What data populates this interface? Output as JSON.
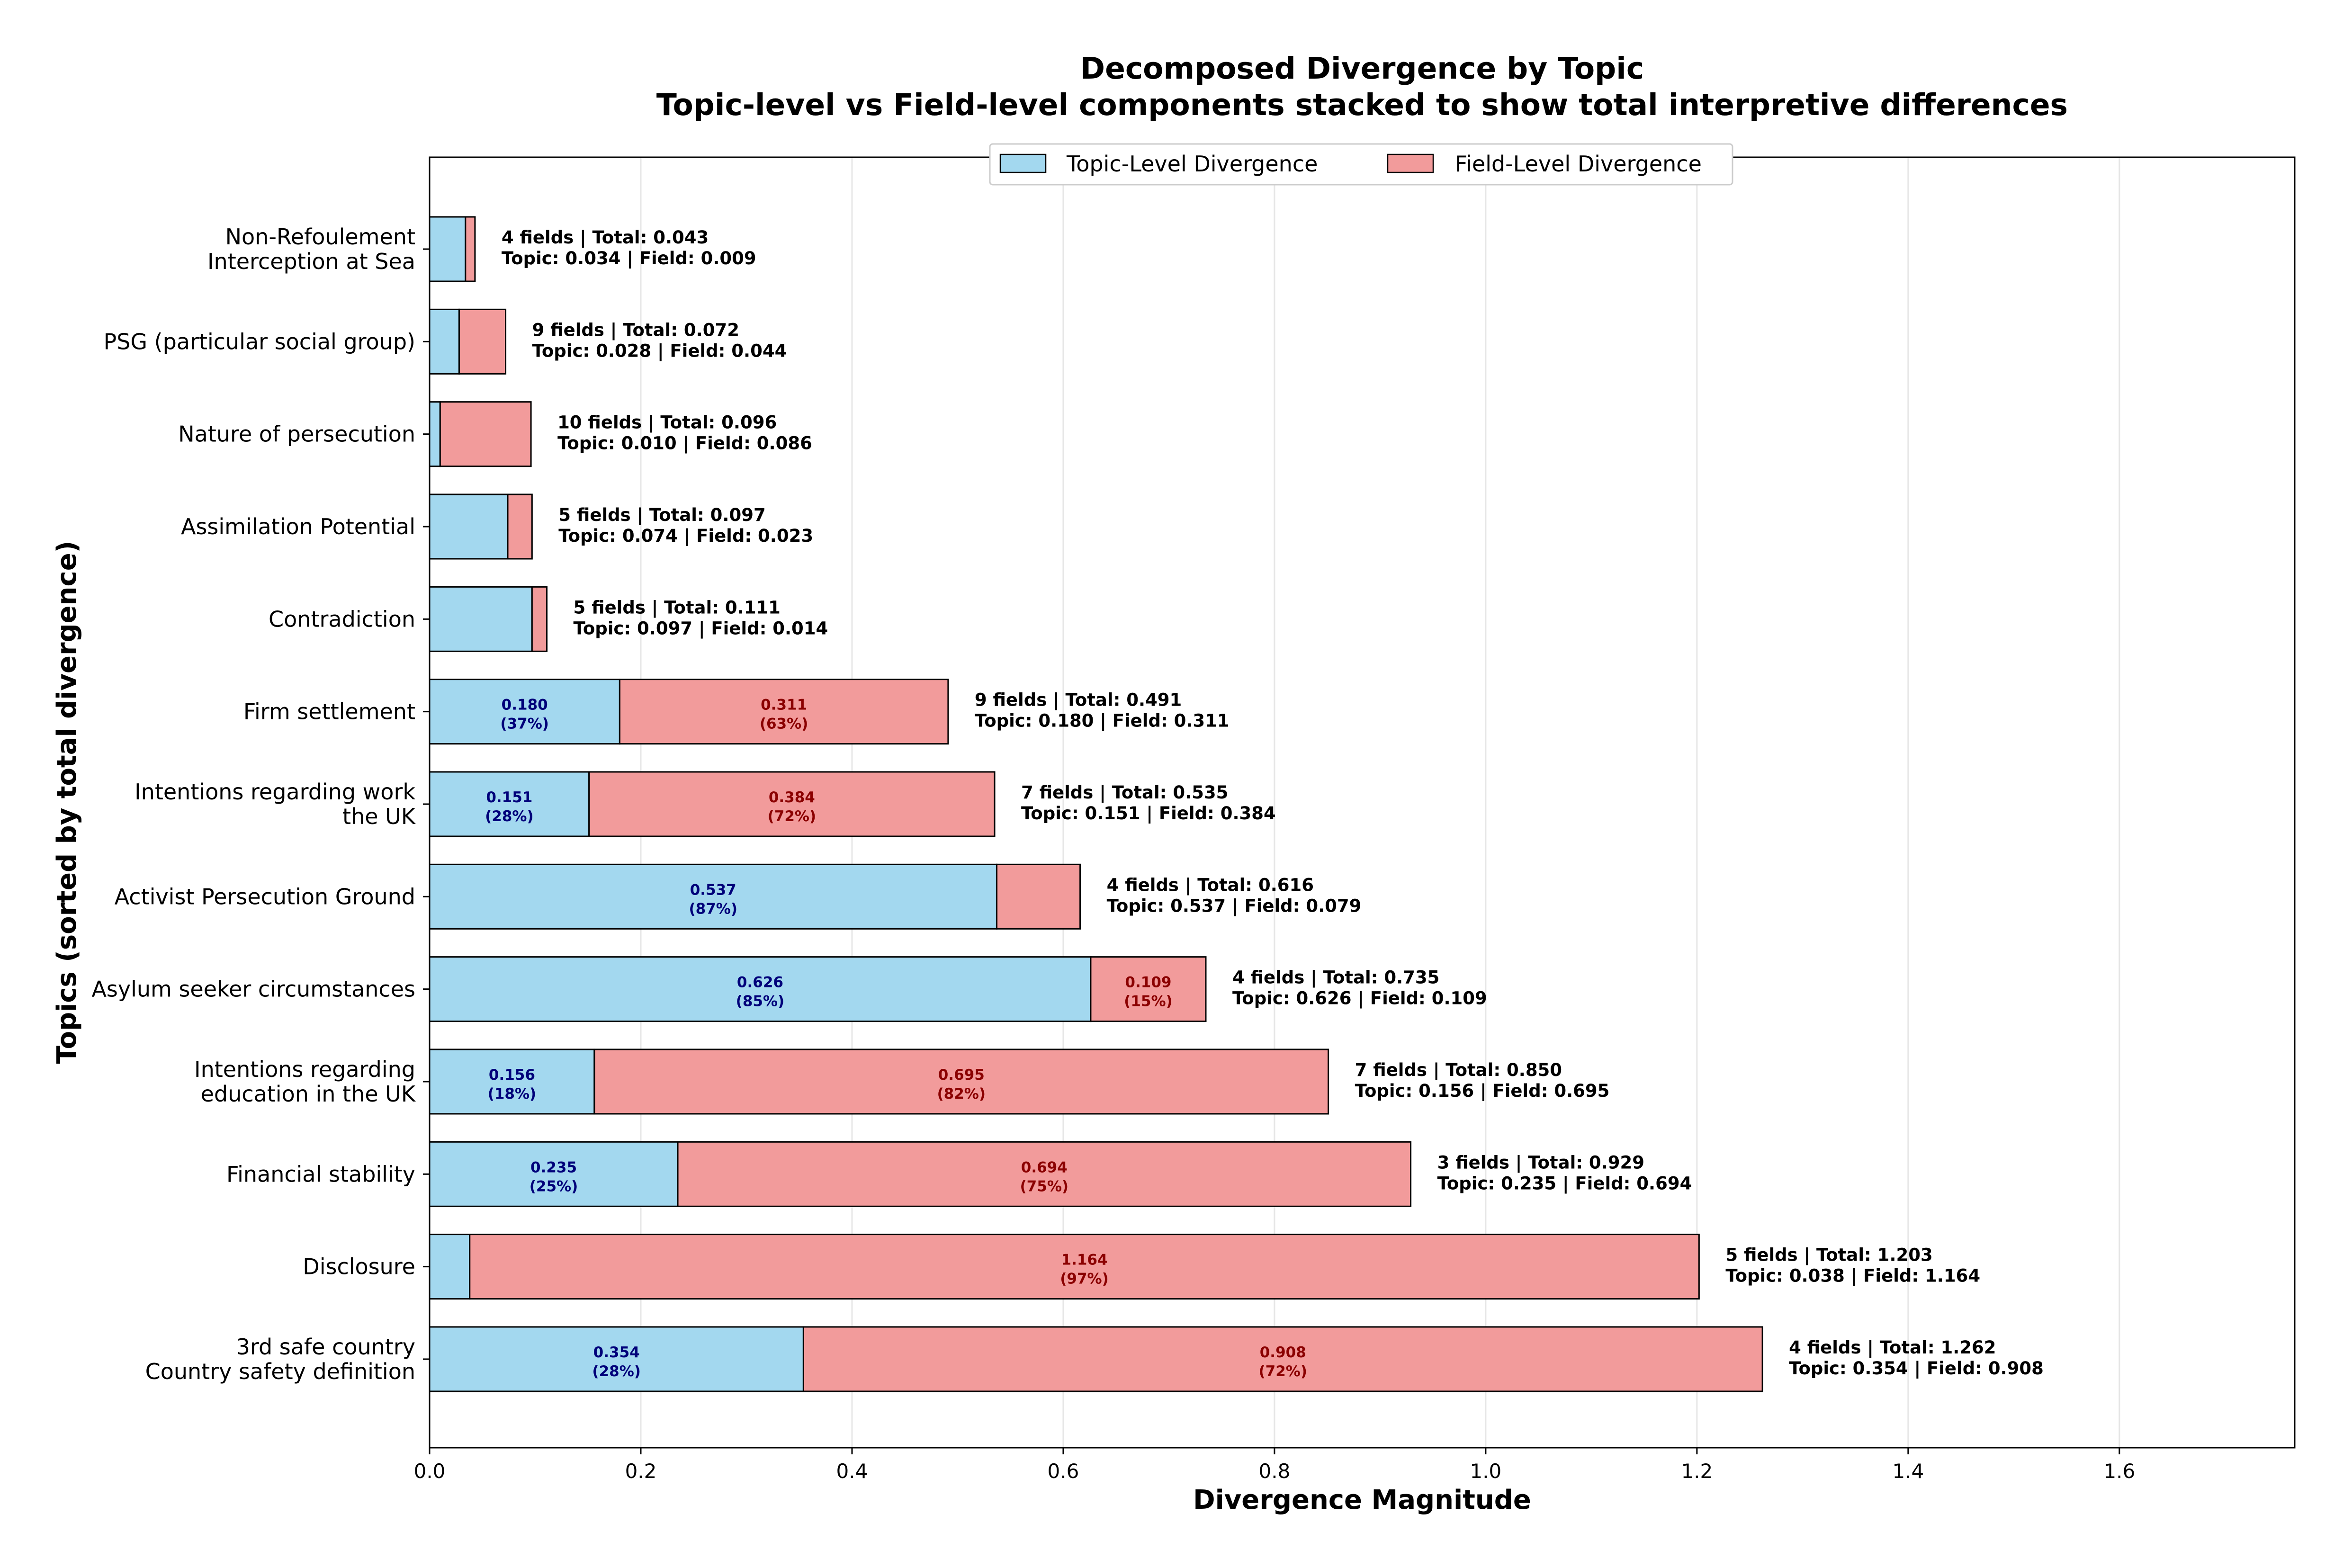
{
  "chart_data": {
    "type": "bar",
    "orientation": "horizontal",
    "stacked": true,
    "title": "Decomposed Divergence by Topic",
    "subtitle": "Topic-level vs Field-level components stacked to show total interpretive differences",
    "xlabel": "Divergence Magnitude",
    "ylabel": "Topics (sorted by total divergence)",
    "xlim": [
      0,
      1.766
    ],
    "x_ticks": [
      "0.0",
      "0.2",
      "0.4",
      "0.6",
      "0.8",
      "1.0",
      "1.2",
      "1.4",
      "1.6"
    ],
    "grid": "vertical",
    "legend_position": "top-center",
    "colors": {
      "topic": "#a3d8ef",
      "field": "#f29b9b",
      "topic_label": "#00007a",
      "field_label": "#8b0000",
      "edge": "#000000"
    },
    "series": [
      {
        "name": "Topic-Level Divergence",
        "key": "topic"
      },
      {
        "name": "Field-Level Divergence",
        "key": "field"
      }
    ],
    "categories": [
      [
        "Non-Refoulement",
        "Interception at Sea"
      ],
      [
        "PSG (particular social group)"
      ],
      [
        "Nature of persecution"
      ],
      [
        "Assimilation Potential"
      ],
      [
        "Contradiction"
      ],
      [
        "Firm settlement"
      ],
      [
        "Intentions regarding work",
        "the UK"
      ],
      [
        "Activist Persecution Ground"
      ],
      [
        "Asylum seeker circumstances"
      ],
      [
        "Intentions regarding",
        "education in the UK"
      ],
      [
        "Financial stability"
      ],
      [
        "Disclosure"
      ],
      [
        "3rd safe country",
        "Country safety definition"
      ]
    ],
    "topic_values": [
      0.034,
      0.028,
      0.01,
      0.074,
      0.097,
      0.18,
      0.151,
      0.537,
      0.626,
      0.156,
      0.235,
      0.038,
      0.354
    ],
    "field_values": [
      0.009,
      0.044,
      0.086,
      0.023,
      0.014,
      0.311,
      0.384,
      0.079,
      0.109,
      0.695,
      0.694,
      1.164,
      0.908
    ],
    "totals": [
      0.043,
      0.072,
      0.096,
      0.097,
      0.111,
      0.491,
      0.535,
      0.616,
      0.735,
      0.85,
      0.929,
      1.203,
      1.262
    ],
    "field_counts": [
      4,
      9,
      10,
      5,
      5,
      9,
      7,
      4,
      4,
      7,
      3,
      5,
      4
    ],
    "annotations": [
      [
        "4 fields | Total: 0.043",
        "Topic: 0.034 | Field: 0.009"
      ],
      [
        "9 fields | Total: 0.072",
        "Topic: 0.028 | Field: 0.044"
      ],
      [
        "10 fields | Total: 0.096",
        "Topic: 0.010 | Field: 0.086"
      ],
      [
        "5 fields | Total: 0.097",
        "Topic: 0.074 | Field: 0.023"
      ],
      [
        "5 fields | Total: 0.111",
        "Topic: 0.097 | Field: 0.014"
      ],
      [
        "9 fields | Total: 0.491",
        "Topic: 0.180 | Field: 0.311"
      ],
      [
        "7 fields | Total: 0.535",
        "Topic: 0.151 | Field: 0.384"
      ],
      [
        "4 fields | Total: 0.616",
        "Topic: 0.537 | Field: 0.079"
      ],
      [
        "4 fields | Total: 0.735",
        "Topic: 0.626 | Field: 0.109"
      ],
      [
        "7 fields | Total: 0.850",
        "Topic: 0.156 | Field: 0.695"
      ],
      [
        "3 fields | Total: 0.929",
        "Topic: 0.235 | Field: 0.694"
      ],
      [
        "5 fields | Total: 1.203",
        "Topic: 0.038 | Field: 1.164"
      ],
      [
        "4 fields | Total: 1.262",
        "Topic: 0.354 | Field: 0.908"
      ]
    ],
    "topic_bar_labels": [
      null,
      null,
      null,
      null,
      null,
      [
        "0.180",
        "(37%)"
      ],
      [
        "0.151",
        "(28%)"
      ],
      [
        "0.537",
        "(87%)"
      ],
      [
        "0.626",
        "(85%)"
      ],
      [
        "0.156",
        "(18%)"
      ],
      [
        "0.235",
        "(25%)"
      ],
      null,
      [
        "0.354",
        "(28%)"
      ]
    ],
    "field_bar_labels": [
      null,
      null,
      null,
      null,
      null,
      [
        "0.311",
        "(63%)"
      ],
      [
        "0.384",
        "(72%)"
      ],
      null,
      [
        "0.109",
        "(15%)"
      ],
      [
        "0.695",
        "(82%)"
      ],
      [
        "0.694",
        "(75%)"
      ],
      [
        "1.164",
        "(97%)"
      ],
      [
        "0.908",
        "(72%)"
      ]
    ]
  }
}
